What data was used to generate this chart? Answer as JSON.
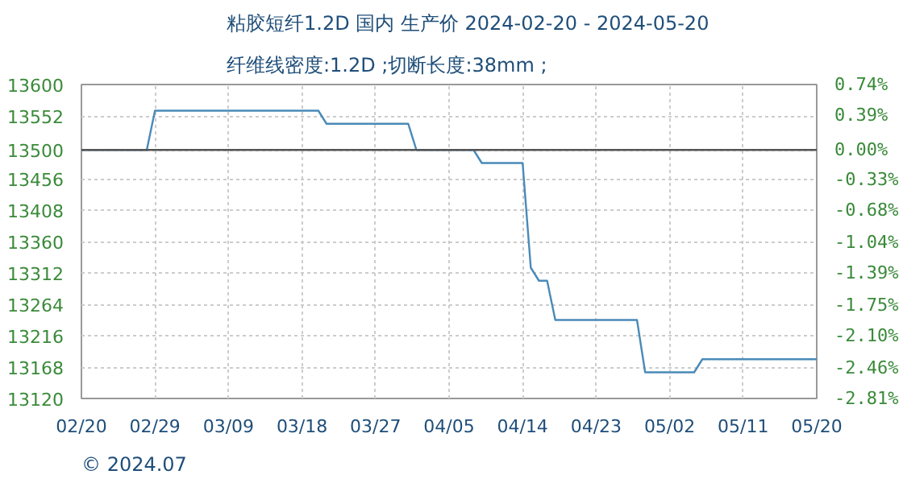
{
  "chart_data": {
    "type": "step",
    "title": "粘胶短纤1.2D 国内 生产价 2024-02-20 - 2024-05-20",
    "subtitle": "纤维线密度:1.2D ;切断长度:38mm ;",
    "annotations": [
      "© 2024.07"
    ],
    "series": [
      {
        "color": "#4a8ab8",
        "x": [
          "2024-02-20",
          "2024-02-28",
          "2024-02-29",
          "2024-03-20",
          "2024-03-21",
          "2024-03-31",
          "2024-04-01",
          "2024-04-08",
          "2024-04-09",
          "2024-04-14",
          "2024-04-15",
          "2024-04-16",
          "2024-04-17",
          "2024-04-18",
          "2024-04-28",
          "2024-04-29",
          "2024-05-05",
          "2024-05-06",
          "2024-05-20"
        ],
        "values": [
          13500,
          13500,
          13560,
          13560,
          13540,
          13540,
          13500,
          13500,
          13480,
          13480,
          13320,
          13300,
          13300,
          13240,
          13240,
          13160,
          13160,
          13180,
          13180
        ]
      }
    ],
    "xlim": [
      "2024-02-20",
      "2024-05-20"
    ],
    "xticks": [
      {
        "value": "2024-02-20",
        "label": "02/20"
      },
      {
        "value": "2024-02-29",
        "label": "02/29"
      },
      {
        "value": "2024-03-09",
        "label": "03/09"
      },
      {
        "value": "2024-03-18",
        "label": "03/18"
      },
      {
        "value": "2024-03-27",
        "label": "03/27"
      },
      {
        "value": "2024-04-05",
        "label": "04/05"
      },
      {
        "value": "2024-04-14",
        "label": "04/14"
      },
      {
        "value": "2024-04-23",
        "label": "04/23"
      },
      {
        "value": "2024-05-02",
        "label": "05/02"
      },
      {
        "value": "2024-05-11",
        "label": "05/11"
      },
      {
        "value": "2024-05-20",
        "label": "05/20"
      }
    ],
    "ylim": [
      13120,
      13600
    ],
    "yticks": [
      13120,
      13168,
      13216,
      13264,
      13312,
      13360,
      13408,
      13456,
      13500,
      13552,
      13600
    ],
    "y2lim": [
      -2.81,
      0.74
    ],
    "y2ticks": [
      {
        "value": -2.81,
        "label": "-2.81%"
      },
      {
        "value": -2.46,
        "label": "-2.46%"
      },
      {
        "value": -2.1,
        "label": "-2.10%"
      },
      {
        "value": -1.75,
        "label": "-1.75%"
      },
      {
        "value": -1.39,
        "label": "-1.39%"
      },
      {
        "value": -1.04,
        "label": "-1.04%"
      },
      {
        "value": -0.68,
        "label": "-0.68%"
      },
      {
        "value": -0.33,
        "label": "-0.33%"
      },
      {
        "value": 0,
        "label": "0.00%"
      },
      {
        "value": 0.39,
        "label": "0.39%"
      },
      {
        "value": 0.74,
        "label": "0.74%"
      }
    ],
    "ref_lines": [
      {
        "axis": "y",
        "value": 13500,
        "color": "#555555"
      }
    ],
    "grid": true,
    "line_style": "solid"
  }
}
